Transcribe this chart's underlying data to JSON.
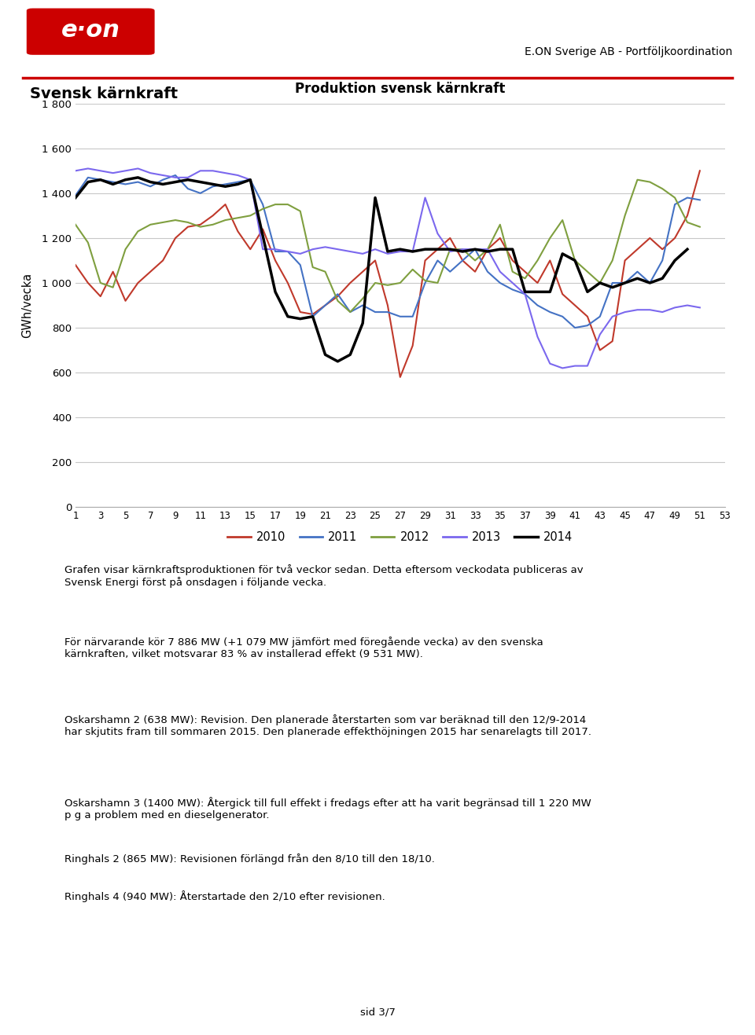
{
  "title_chart": "Produktion svensk kärnkraft",
  "ylabel": "GWh/vecka",
  "xlabel_vals": [
    1,
    3,
    5,
    7,
    9,
    11,
    13,
    15,
    17,
    19,
    21,
    23,
    25,
    27,
    29,
    31,
    33,
    35,
    37,
    39,
    41,
    43,
    45,
    47,
    49,
    51,
    53
  ],
  "ylim": [
    0,
    1800
  ],
  "yticks": [
    0,
    200,
    400,
    600,
    800,
    1000,
    1200,
    1400,
    1600,
    1800
  ],
  "header_text": "E.ON Sverige AB - Portföljkoordination",
  "section_title": "Svensk kärnkraft",
  "legend_labels": [
    "2010",
    "2011",
    "2012",
    "2013",
    "2014"
  ],
  "legend_colors": [
    "#c0392b",
    "#4472c4",
    "#7f9f3f",
    "#7b68ee",
    "#000000"
  ],
  "body_text_1": "Grafen visar kärnkraftsproduktionen för två veckor sedan. Detta eftersom veckodata publiceras av\nSvensk Energi först på onsdagen i följande vecka.",
  "body_text_2": "För närvarande kör 7 886 MW (+1 079 MW jämfört med föregående vecka) av den svenska\nkärnkraften, vilket motsvarar 83 % av installerad effekt (9 531 MW).",
  "body_text_3": "Oskarshamn 2 (638 MW): Revision. Den planerade återstarten som var beräknad till den 12/9-2014\nhar skjutits fram till sommaren 2015. Den planerade effekthöjningen 2015 har senarelagts till 2017.",
  "body_text_4": "Oskarshamn 3 (1400 MW): Återgick till full effekt i fredags efter att ha varit begränsad till 1 220 MW\np g a problem med en dieselgenerator.",
  "body_text_5": "Ringhals 2 (865 MW): Revisionen förlängd från den 8/10 till den 18/10.",
  "body_text_6": "Ringhals 4 (940 MW): Återstartade den 2/10 efter revisionen.",
  "footer_text": "sid 3/7",
  "series_2010": [
    1080,
    1000,
    940,
    1050,
    920,
    1000,
    1050,
    1100,
    1200,
    1250,
    1260,
    1300,
    1350,
    1230,
    1150,
    1240,
    1100,
    1000,
    870,
    860,
    900,
    940,
    1000,
    1050,
    1100,
    900,
    580,
    720,
    1100,
    1150,
    1200,
    1100,
    1050,
    1150,
    1200,
    1100,
    1050,
    1000,
    1100,
    950,
    900,
    850,
    700,
    740,
    1100,
    1150,
    1200,
    1150,
    1200,
    1300,
    1500
  ],
  "series_2011": [
    1390,
    1470,
    1460,
    1450,
    1440,
    1450,
    1430,
    1460,
    1480,
    1420,
    1400,
    1430,
    1440,
    1450,
    1460,
    1350,
    1140,
    1140,
    1080,
    850,
    900,
    950,
    870,
    900,
    870,
    870,
    850,
    850,
    1000,
    1100,
    1050,
    1100,
    1150,
    1050,
    1000,
    970,
    950,
    900,
    870,
    850,
    800,
    810,
    850,
    1000,
    1000,
    1050,
    1000,
    1100,
    1350,
    1380,
    1370
  ],
  "series_2012": [
    1260,
    1180,
    1000,
    980,
    1150,
    1230,
    1260,
    1270,
    1280,
    1270,
    1250,
    1260,
    1280,
    1290,
    1300,
    1330,
    1350,
    1350,
    1320,
    1070,
    1050,
    920,
    870,
    930,
    1000,
    990,
    1000,
    1060,
    1010,
    1000,
    1150,
    1150,
    1100,
    1150,
    1260,
    1050,
    1020,
    1100,
    1200,
    1280,
    1100,
    1050,
    1000,
    1100,
    1300,
    1460,
    1450,
    1420,
    1380,
    1270,
    1250
  ],
  "series_2013": [
    1500,
    1510,
    1500,
    1490,
    1500,
    1510,
    1490,
    1480,
    1470,
    1470,
    1500,
    1500,
    1490,
    1480,
    1460,
    1150,
    1150,
    1140,
    1130,
    1150,
    1160,
    1150,
    1140,
    1130,
    1150,
    1130,
    1140,
    1140,
    1380,
    1220,
    1140,
    1150,
    1150,
    1150,
    1050,
    1000,
    950,
    760,
    640,
    620,
    630,
    630,
    770,
    850,
    870,
    880,
    880,
    870,
    890,
    900,
    890
  ],
  "series_2014": [
    1380,
    1450,
    1460,
    1440,
    1460,
    1470,
    1450,
    1440,
    1450,
    1460,
    1450,
    1440,
    1430,
    1440,
    1460,
    1210,
    960,
    850,
    840,
    850,
    680,
    650,
    680,
    820,
    1380,
    1140,
    1150,
    1140,
    1150,
    1150,
    1150,
    1140,
    1150,
    1140,
    1150,
    1150,
    960,
    960,
    960,
    1130,
    1100,
    960,
    1000,
    980,
    1000,
    1020,
    1000,
    1020,
    1100,
    1150,
    null
  ]
}
